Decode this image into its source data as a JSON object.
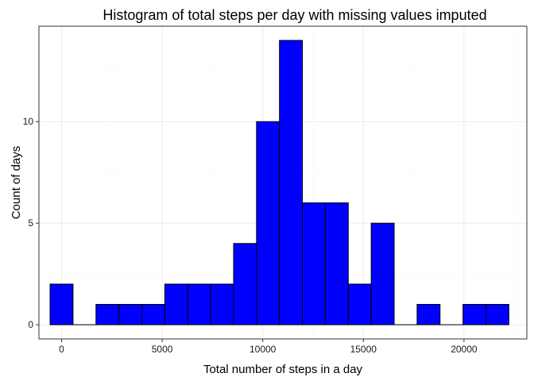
{
  "chart_data": {
    "type": "bar",
    "title": "Histogram of total steps per day with missing values imputed",
    "xlabel": "Total number of steps in a day",
    "ylabel": "Count of days",
    "xlim": [
      -1125,
      23125
    ],
    "ylim": [
      -0.7,
      14.7
    ],
    "x_ticks": [
      0,
      5000,
      10000,
      15000,
      20000
    ],
    "x_tick_labels": [
      "0",
      "5000",
      "10000",
      "15000",
      "20000"
    ],
    "y_ticks": [
      0,
      5,
      10
    ],
    "y_tick_labels": [
      "0",
      "5",
      "10"
    ],
    "grid": true,
    "bin_width": 1140,
    "bins": [
      {
        "x": 0,
        "count": 2
      },
      {
        "x": 1140,
        "count": 0
      },
      {
        "x": 2280,
        "count": 1
      },
      {
        "x": 3420,
        "count": 1
      },
      {
        "x": 4560,
        "count": 1
      },
      {
        "x": 5700,
        "count": 2
      },
      {
        "x": 6840,
        "count": 2
      },
      {
        "x": 7980,
        "count": 2
      },
      {
        "x": 9120,
        "count": 4
      },
      {
        "x": 10260,
        "count": 10
      },
      {
        "x": 11400,
        "count": 14
      },
      {
        "x": 12540,
        "count": 6
      },
      {
        "x": 13680,
        "count": 6
      },
      {
        "x": 14820,
        "count": 2
      },
      {
        "x": 15960,
        "count": 5
      },
      {
        "x": 17100,
        "count": 0
      },
      {
        "x": 18240,
        "count": 1
      },
      {
        "x": 19380,
        "count": 0
      },
      {
        "x": 20520,
        "count": 1
      },
      {
        "x": 21660,
        "count": 1
      }
    ],
    "colors": {
      "fill": "#0000ff",
      "stroke": "#000000",
      "grid_major": "#ebebeb",
      "grid_minor": "#f5f5f5",
      "panel_border": "#333333"
    }
  }
}
